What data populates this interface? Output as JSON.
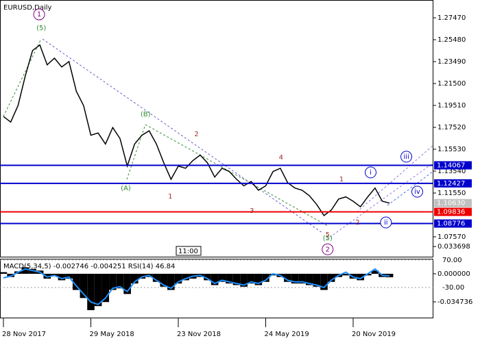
{
  "chart_data": [
    {
      "type": "line",
      "title": "EURUSD,Daily",
      "time_label": "11:00",
      "categories": [
        "28 Nov 2017",
        null,
        null,
        null,
        null,
        null,
        null,
        null,
        null,
        null,
        null,
        null,
        "29 May 2018",
        null,
        null,
        null,
        null,
        null,
        null,
        null,
        null,
        null,
        null,
        null,
        "23 Nov 2018",
        null,
        null,
        null,
        null,
        null,
        null,
        null,
        null,
        null,
        null,
        null,
        "24 May 2019",
        null,
        null,
        null,
        null,
        null,
        null,
        null,
        null,
        null,
        null,
        null,
        "20 Nov 2019",
        null,
        null,
        null,
        null,
        null
      ],
      "values": [
        1.185,
        1.18,
        1.195,
        1.222,
        1.245,
        1.25,
        1.232,
        1.238,
        1.23,
        1.235,
        1.208,
        1.195,
        1.168,
        1.17,
        1.16,
        1.175,
        1.165,
        1.14,
        1.16,
        1.168,
        1.172,
        1.16,
        1.143,
        1.128,
        1.14,
        1.138,
        1.145,
        1.15,
        1.143,
        1.13,
        1.138,
        1.135,
        1.128,
        1.122,
        1.126,
        1.118,
        1.122,
        1.135,
        1.138,
        1.125,
        1.12,
        1.118,
        1.113,
        1.105,
        1.095,
        1.1,
        1.11,
        1.112,
        1.108,
        1.103,
        1.112,
        1.12,
        1.108,
        1.1063
      ],
      "color": "#000000",
      "ylim": [
        1.057,
        1.2909
      ],
      "yticks": [
        {
          "value": 1.2747,
          "label": "1.27470"
        },
        {
          "value": 1.2548,
          "label": "1.25480"
        },
        {
          "value": 1.2349,
          "label": "1.23490"
        },
        {
          "value": 1.215,
          "label": "1.21500"
        },
        {
          "value": 1.1951,
          "label": "1.19510"
        },
        {
          "value": 1.1752,
          "label": "1.17520"
        },
        {
          "value": 1.1553,
          "label": "1.15530"
        },
        {
          "value": 1.1354,
          "label": "1.13540"
        },
        {
          "value": 1.1155,
          "label": "1.11550"
        },
        {
          "value": 1.0757,
          "label": "1.07570"
        }
      ],
      "levels": [
        {
          "value": 1.14067,
          "color": "#0000cc"
        },
        {
          "value": 1.12427,
          "color": "#0000cc"
        },
        {
          "value": 1.1063,
          "label": "1.10630",
          "color": "#c0c0c0"
        },
        {
          "value": 1.09836,
          "color": "#ee0000"
        },
        {
          "value": 1.08776,
          "color": "#0000cc"
        }
      ],
      "annotations": [
        {
          "text": "1",
          "x": 4.9,
          "y": 1.2778,
          "color": "#800080",
          "circle": true
        },
        {
          "text": "(5)",
          "x": 5.2,
          "y": 1.2654,
          "color": "#2e8b2e",
          "circle": false
        },
        {
          "text": "(B)",
          "x": 19.5,
          "y": 1.187,
          "color": "#2e8b2e",
          "circle": false
        },
        {
          "text": "2",
          "x": 26.5,
          "y": 1.169,
          "color": "#a52a2a",
          "circle": false
        },
        {
          "text": "(A)",
          "x": 16.8,
          "y": 1.1198,
          "color": "#2e8b2e",
          "circle": false
        },
        {
          "text": "1",
          "x": 22.9,
          "y": 1.1124,
          "color": "#a52a2a",
          "circle": false
        },
        {
          "text": "4",
          "x": 38.1,
          "y": 1.1478,
          "color": "#a52a2a",
          "circle": false
        },
        {
          "text": "3",
          "x": 34.1,
          "y": 1.0993,
          "color": "#a52a2a",
          "circle": false
        },
        {
          "text": "1",
          "x": 46.4,
          "y": 1.1279,
          "color": "#a52a2a",
          "circle": false
        },
        {
          "text": "2",
          "x": 48.6,
          "y": 1.0887,
          "color": "#a52a2a",
          "circle": false
        },
        {
          "text": "i",
          "x": 50.4,
          "y": 1.1342,
          "color": "#0000cc",
          "circle": true
        },
        {
          "text": "ii",
          "x": 52.5,
          "y": 1.0887,
          "color": "#0000cc",
          "circle": true
        },
        {
          "text": "iii",
          "x": 55.3,
          "y": 1.1485,
          "color": "#0000cc",
          "circle": true
        },
        {
          "text": "iv",
          "x": 56.8,
          "y": 1.1167,
          "color": "#0000cc",
          "circle": true
        },
        {
          "text": "5",
          "x": 44.5,
          "y": 1.0776,
          "color": "#a52a2a",
          "circle": false
        },
        {
          "text": "(5)",
          "x": 44.5,
          "y": 1.0744,
          "color": "#2e8b2e",
          "circle": false
        },
        {
          "text": "2",
          "x": 44.5,
          "y": 1.0643,
          "color": "#800080",
          "circle": true
        }
      ]
    },
    {
      "type": "bar",
      "label": "MACD(5,34,5) -0.002746 -0.004251 RSI(14) 46.84",
      "series": [
        {
          "type": "bar",
          "color": "#000000",
          "values": [
            0.002,
            -0.004,
            0.003,
            0.008,
            0.006,
            0.004,
            -0.006,
            -0.003,
            -0.008,
            -0.006,
            -0.02,
            -0.03,
            -0.045,
            -0.04,
            -0.035,
            -0.02,
            -0.018,
            -0.025,
            -0.012,
            -0.006,
            -0.004,
            -0.01,
            -0.016,
            -0.02,
            -0.012,
            -0.008,
            -0.006,
            -0.004,
            -0.008,
            -0.014,
            -0.01,
            -0.012,
            -0.014,
            -0.016,
            -0.012,
            -0.014,
            -0.01,
            -0.002,
            -0.004,
            -0.01,
            -0.012,
            -0.012,
            -0.014,
            -0.016,
            -0.02,
            -0.01,
            -0.004,
            -0.002,
            -0.006,
            -0.008,
            -0.002,
            0.004,
            -0.004,
            -0.0043
          ]
        },
        {
          "type": "line",
          "color": "#1e90ff",
          "values": [
            -0.005,
            -0.003,
            0.002,
            0.006,
            0.004,
            0.002,
            -0.004,
            -0.002,
            -0.006,
            -0.004,
            -0.015,
            -0.025,
            -0.035,
            -0.038,
            -0.03,
            -0.018,
            -0.016,
            -0.022,
            -0.01,
            -0.004,
            -0.002,
            -0.008,
            -0.014,
            -0.018,
            -0.01,
            -0.006,
            -0.003,
            -0.002,
            -0.006,
            -0.012,
            -0.008,
            -0.01,
            -0.012,
            -0.014,
            -0.01,
            -0.012,
            -0.008,
            0.0,
            -0.002,
            -0.008,
            -0.01,
            -0.01,
            -0.012,
            -0.014,
            -0.017,
            -0.008,
            -0.002,
            0.002,
            -0.004,
            -0.006,
            0.0,
            0.006,
            -0.002,
            -0.0027
          ]
        }
      ],
      "ylim": [
        -0.0551,
        0.0186
      ],
      "yticks": [
        0.033698,
        {
          "value": 0,
          "label": "0.000000"
        },
        -0.034736
      ],
      "y2lim": [
        -142.5,
        75
      ],
      "y2ticks": [
        {
          "value": 70,
          "label": "70.00"
        },
        {
          "value": -30,
          "label": "-30.00"
        }
      ]
    }
  ]
}
